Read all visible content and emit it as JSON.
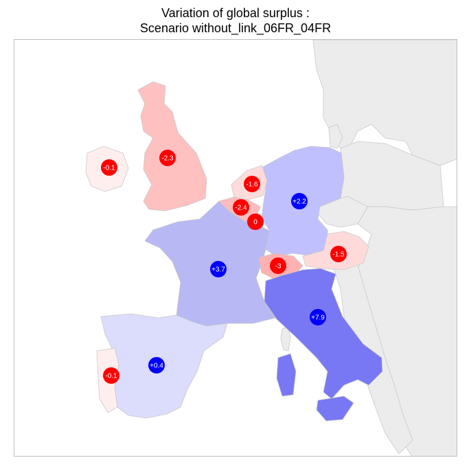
{
  "title": {
    "line1": "Variation of global surplus :",
    "line2": "Scenario without_link_06FR_04FR"
  },
  "colors": {
    "negative_bubble": "#ff0000",
    "positive_bubble": "#0000ff",
    "neighbor_fill": "#ececec",
    "border": "#c8c8c8"
  },
  "regions": [
    {
      "name": "Ireland",
      "value": "-0.1",
      "fill": "#ffeeee"
    },
    {
      "name": "Great Britain",
      "value": "-2.3",
      "fill": "#ffc0c0"
    },
    {
      "name": "Netherlands",
      "value": "-1.6",
      "fill": "#ffdcdc"
    },
    {
      "name": "Belgium",
      "value": "-2.4",
      "fill": "#ffbcbc"
    },
    {
      "name": "Luxembourg",
      "value": "0",
      "fill": "#ffe8e8"
    },
    {
      "name": "Germany",
      "value": "+2.2",
      "fill": "#c0c0ff"
    },
    {
      "name": "France",
      "value": "+3.7",
      "fill": "#b8b8f4"
    },
    {
      "name": "Switzerland",
      "value": "-3",
      "fill": "#ffb0b0"
    },
    {
      "name": "Austria",
      "value": "-1.5",
      "fill": "#ffdada"
    },
    {
      "name": "Italy",
      "value": "+7.9",
      "fill": "#7878f4"
    },
    {
      "name": "Spain",
      "value": "+0.4",
      "fill": "#dcdcfc"
    },
    {
      "name": "Portugal",
      "value": "-0.1",
      "fill": "#ffeeee"
    }
  ]
}
